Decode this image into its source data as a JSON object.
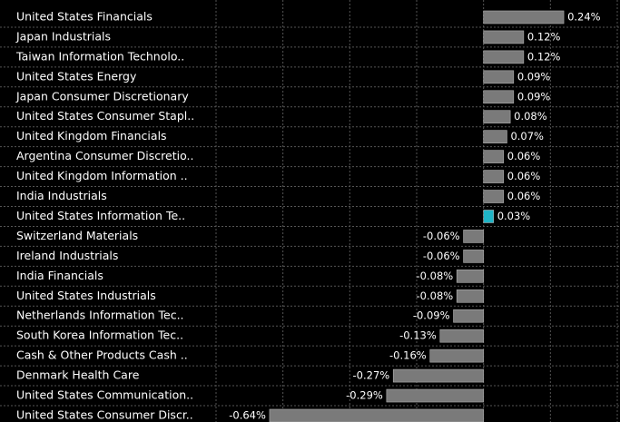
{
  "chart_data": {
    "type": "barh",
    "categories": [
      "United States Financials",
      "Japan Industrials",
      "Taiwan Information Technolo..",
      "United States Energy",
      "Japan Consumer Discretionary",
      "United States Consumer Stapl..",
      "United Kingdom Financials",
      "Argentina Consumer Discretio..",
      "United Kingdom Information ..",
      "India Industrials",
      "United States Information Te..",
      "Switzerland Materials",
      "Ireland Industrials",
      "India Financials",
      "United States Industrials",
      "Netherlands Information Tec..",
      "South Korea Information Tec..",
      "Cash & Other Products Cash ..",
      "Denmark Health Care",
      "United States Communication..",
      "United States Consumer Discr.."
    ],
    "values": [
      0.24,
      0.12,
      0.12,
      0.09,
      0.09,
      0.08,
      0.07,
      0.06,
      0.06,
      0.06,
      0.03,
      -0.06,
      -0.06,
      -0.08,
      -0.08,
      -0.09,
      -0.13,
      -0.16,
      -0.27,
      -0.29,
      -0.64
    ],
    "value_labels": [
      "0.24%",
      "0.12%",
      "0.12%",
      "0.09%",
      "0.09%",
      "0.08%",
      "0.07%",
      "0.06%",
      "0.06%",
      "0.06%",
      "0.03%",
      "-0.06%",
      "-0.06%",
      "-0.08%",
      "-0.08%",
      "-0.09%",
      "-0.13%",
      "-0.16%",
      "-0.27%",
      "-0.29%",
      "-0.64%"
    ],
    "colors": [
      "#7a7a7a",
      "#7a7a7a",
      "#7a7a7a",
      "#7a7a7a",
      "#7a7a7a",
      "#7a7a7a",
      "#7a7a7a",
      "#7a7a7a",
      "#7a7a7a",
      "#7a7a7a",
      "#1fb4c6",
      "#7a7a7a",
      "#7a7a7a",
      "#7a7a7a",
      "#7a7a7a",
      "#7a7a7a",
      "#7a7a7a",
      "#7a7a7a",
      "#7a7a7a",
      "#7a7a7a",
      "#7a7a7a"
    ],
    "xlim": [
      -0.8,
      0.4
    ],
    "xticks": [
      -0.8,
      -0.6,
      -0.4,
      -0.2,
      0,
      0.2,
      0.4
    ],
    "grid": true
  }
}
